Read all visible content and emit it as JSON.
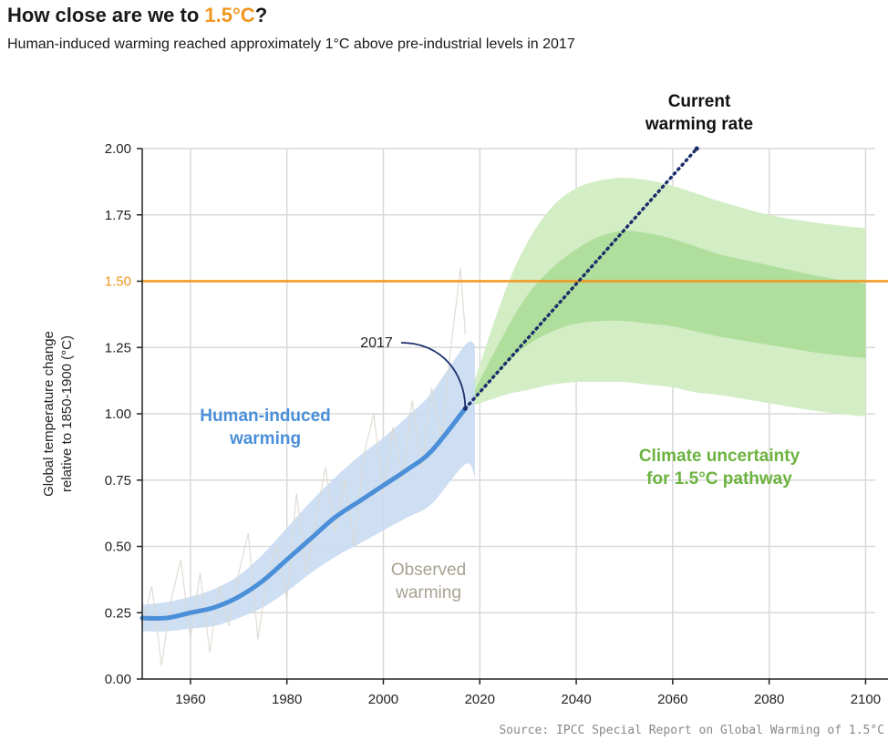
{
  "title": {
    "prefix": "How close are we to ",
    "highlight": "1.5°C",
    "suffix": "?"
  },
  "subtitle": "Human-induced warming reached approximately 1°C above pre-industrial levels in 2017",
  "source": "Source: IPCC Special Report on Global Warming of 1.5°C",
  "colors": {
    "human_line": "#4a8fd8",
    "human_band": "#c9dbf2",
    "green_outer": "#d3edc5",
    "green_inner": "#a9dc95",
    "threshold": "#f0961e",
    "current_rate": "#1d2f6b",
    "observed": "#ddd9d2",
    "green_text": "#6cb33f",
    "blue_text": "#4a8fd8",
    "observed_text": "#a8a292"
  },
  "chart_data": {
    "type": "line",
    "title": "How close are we to 1.5°C?",
    "ylabel": "Global temperature change relative to 1850-1900 (°C)",
    "xlabel": "",
    "xlim": [
      1950,
      2102
    ],
    "ylim": [
      0,
      2.0
    ],
    "x_ticks": [
      1960,
      1980,
      2000,
      2020,
      2040,
      2060,
      2080,
      2100
    ],
    "y_ticks": [
      "0.00",
      "0.25",
      "0.50",
      "0.75",
      "1.00",
      "1.25",
      "1.50",
      "1.75",
      "2.00"
    ],
    "y_tick_values": [
      0,
      0.25,
      0.5,
      0.75,
      1.0,
      1.25,
      1.5,
      1.75,
      2.0
    ],
    "grid": true,
    "highlighted_tick": "1.50",
    "threshold": {
      "value": 1.5,
      "label": "1.50"
    },
    "series": [
      {
        "name": "Human-induced warming",
        "x": [
          1950,
          1955,
          1960,
          1965,
          1970,
          1975,
          1980,
          1985,
          1990,
          1995,
          2000,
          2005,
          2010,
          2017
        ],
        "y": [
          0.23,
          0.23,
          0.25,
          0.27,
          0.31,
          0.37,
          0.45,
          0.53,
          0.61,
          0.67,
          0.73,
          0.79,
          0.86,
          1.02
        ],
        "band_upper": [
          0.28,
          0.29,
          0.31,
          0.34,
          0.39,
          0.47,
          0.57,
          0.67,
          0.76,
          0.84,
          0.91,
          0.99,
          1.08,
          1.26
        ],
        "band_lower": [
          0.18,
          0.18,
          0.19,
          0.2,
          0.23,
          0.27,
          0.33,
          0.4,
          0.46,
          0.51,
          0.56,
          0.61,
          0.66,
          0.81
        ],
        "band_end": {
          "x": 2019,
          "upper": 1.26,
          "lower": 0.76
        }
      },
      {
        "name": "Current warming rate",
        "x": [
          2017,
          2065
        ],
        "y": [
          1.02,
          2.0
        ]
      },
      {
        "name": "Climate uncertainty for 1.5°C pathway",
        "x": [
          2017,
          2025,
          2030,
          2035,
          2040,
          2045,
          2050,
          2055,
          2060,
          2065,
          2070,
          2080,
          2090,
          2100
        ],
        "outer_upper": [
          1.02,
          1.45,
          1.65,
          1.78,
          1.85,
          1.88,
          1.89,
          1.88,
          1.86,
          1.83,
          1.8,
          1.75,
          1.72,
          1.7
        ],
        "outer_lower": [
          1.02,
          1.07,
          1.09,
          1.11,
          1.12,
          1.12,
          1.12,
          1.11,
          1.1,
          1.08,
          1.07,
          1.04,
          1.01,
          0.99
        ],
        "inner_upper": [
          1.02,
          1.3,
          1.45,
          1.55,
          1.62,
          1.67,
          1.69,
          1.68,
          1.66,
          1.63,
          1.6,
          1.56,
          1.52,
          1.49
        ],
        "inner_lower": [
          1.02,
          1.18,
          1.26,
          1.31,
          1.34,
          1.35,
          1.35,
          1.34,
          1.33,
          1.31,
          1.29,
          1.26,
          1.23,
          1.21
        ]
      },
      {
        "name": "Observed warming",
        "x": [
          1950,
          1952,
          1954,
          1956,
          1958,
          1960,
          1962,
          1964,
          1966,
          1968,
          1970,
          1972,
          1974,
          1976,
          1978,
          1980,
          1982,
          1984,
          1986,
          1988,
          1990,
          1992,
          1994,
          1996,
          1998,
          2000,
          2002,
          2004,
          2006,
          2008,
          2010,
          2012,
          2014,
          2016,
          2017
        ],
        "y": [
          0.2,
          0.35,
          0.05,
          0.3,
          0.45,
          0.15,
          0.4,
          0.1,
          0.35,
          0.2,
          0.4,
          0.55,
          0.15,
          0.4,
          0.5,
          0.3,
          0.7,
          0.4,
          0.6,
          0.8,
          0.55,
          0.75,
          0.5,
          0.85,
          1.0,
          0.7,
          0.95,
          0.75,
          1.05,
          0.8,
          1.1,
          0.9,
          1.25,
          1.55,
          1.3
        ]
      }
    ],
    "annotations": {
      "year_marker": {
        "label": "2017",
        "x": 2017,
        "y": 1.02
      },
      "human": [
        "Human-induced",
        "warming"
      ],
      "observed": [
        "Observed",
        "warming"
      ],
      "current": [
        "Current",
        "warming rate"
      ],
      "uncertainty": [
        "Climate uncertainty",
        "for 1.5°C pathway"
      ]
    }
  }
}
